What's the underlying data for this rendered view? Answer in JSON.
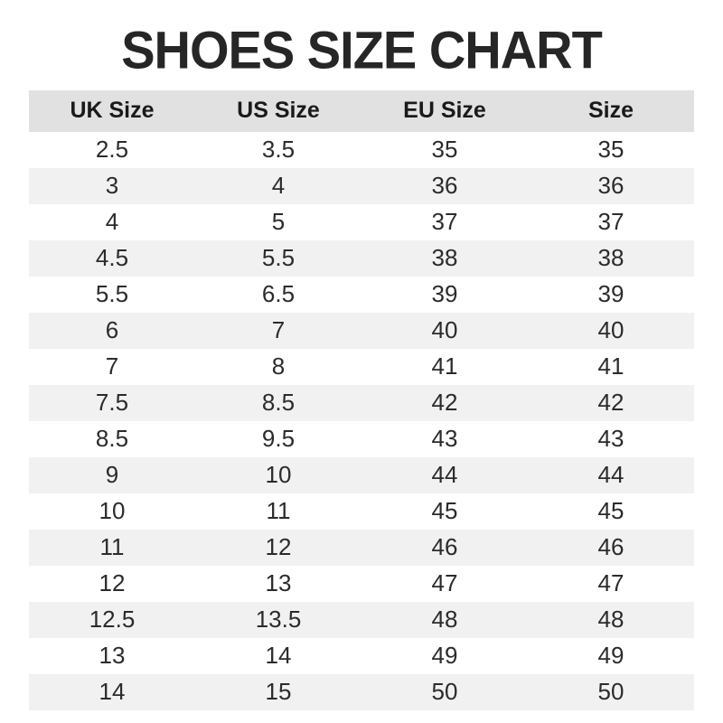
{
  "title": "SHOES SIZE CHART",
  "colors": {
    "background": "#ffffff",
    "title_text": "#262626",
    "header_bg": "#e1e1e1",
    "row_alt_bg": "#f1f1f1",
    "cell_text": "#2b2b2b"
  },
  "chart_data": {
    "type": "table",
    "title": "SHOES SIZE CHART",
    "columns": [
      "UK Size",
      "US Size",
      "EU Size",
      "Size"
    ],
    "rows": [
      [
        "2.5",
        "3.5",
        "35",
        "35"
      ],
      [
        "3",
        "4",
        "36",
        "36"
      ],
      [
        "4",
        "5",
        "37",
        "37"
      ],
      [
        "4.5",
        "5.5",
        "38",
        "38"
      ],
      [
        "5.5",
        "6.5",
        "39",
        "39"
      ],
      [
        "6",
        "7",
        "40",
        "40"
      ],
      [
        "7",
        "8",
        "41",
        "41"
      ],
      [
        "7.5",
        "8.5",
        "42",
        "42"
      ],
      [
        "8.5",
        "9.5",
        "43",
        "43"
      ],
      [
        "9",
        "10",
        "44",
        "44"
      ],
      [
        "10",
        "11",
        "45",
        "45"
      ],
      [
        "11",
        "12",
        "46",
        "46"
      ],
      [
        "12",
        "13",
        "47",
        "47"
      ],
      [
        "12.5",
        "13.5",
        "48",
        "48"
      ],
      [
        "13",
        "14",
        "49",
        "49"
      ],
      [
        "14",
        "15",
        "50",
        "50"
      ]
    ],
    "layout": {
      "header_background": "#e1e1e1",
      "zebra_striping": true,
      "alignment": "center"
    }
  }
}
